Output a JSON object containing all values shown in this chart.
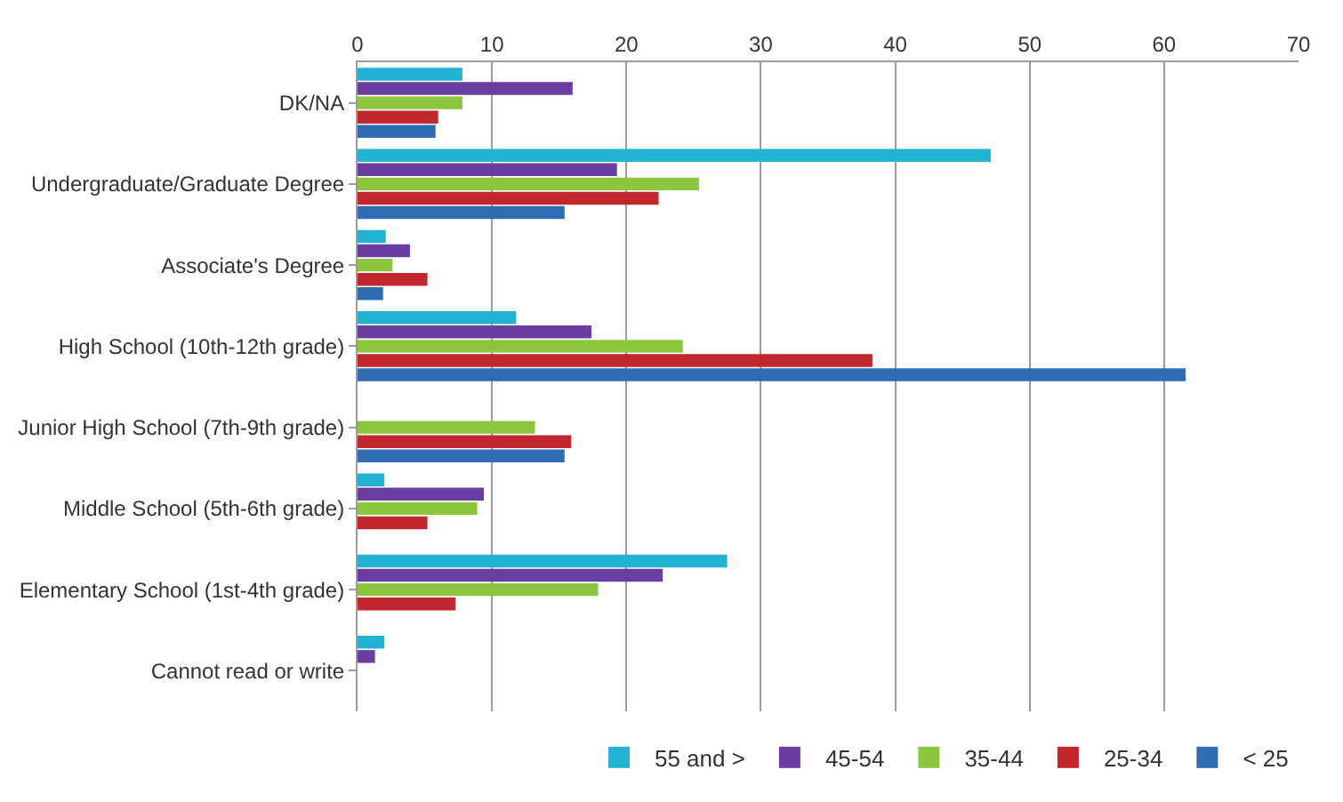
{
  "chart_data": {
    "type": "bar",
    "orientation": "horizontal",
    "categories": [
      "DK/NA",
      "Undergraduate/Graduate Degree",
      "Associate's Degree",
      "High School (10th-12th grade)",
      "Junior High School (7th-9th grade)",
      "Middle School (5th-6th grade)",
      "Elementary School (1st-4th grade)",
      "Cannot read or write"
    ],
    "series": [
      {
        "name": "55 and >",
        "color": "#22b2d2",
        "values": [
          7.8,
          47.1,
          2.1,
          11.8,
          0,
          2.0,
          27.5,
          2.0
        ]
      },
      {
        "name": "45-54",
        "color": "#6a3ea1",
        "values": [
          16.0,
          19.3,
          3.9,
          17.4,
          0,
          9.4,
          22.7,
          1.3
        ]
      },
      {
        "name": "35-44",
        "color": "#8cc63f",
        "values": [
          7.8,
          25.4,
          2.6,
          24.2,
          13.2,
          8.9,
          17.9,
          0
        ]
      },
      {
        "name": "25-34",
        "color": "#c1272d",
        "values": [
          6.0,
          22.4,
          5.2,
          38.3,
          15.9,
          5.2,
          7.3,
          0
        ]
      },
      {
        "name": "< 25",
        "color": "#2e6db4",
        "values": [
          5.8,
          15.4,
          1.9,
          61.6,
          15.4,
          0,
          0,
          0
        ]
      }
    ],
    "xlim": [
      0,
      70
    ],
    "xticks": [
      0,
      10,
      20,
      30,
      40,
      50,
      60,
      70
    ],
    "grid": "x",
    "legend": "bottom"
  }
}
